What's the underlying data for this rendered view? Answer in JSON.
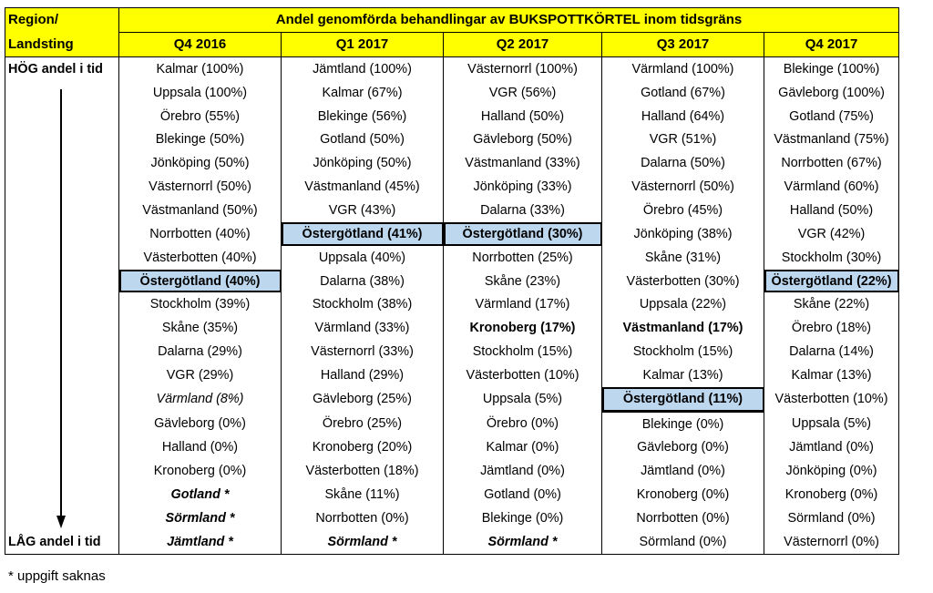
{
  "header": {
    "region_label": "Region/",
    "landsting_label": "Landsting",
    "title": "Andel genomförda behandlingar av BUKSPOTTKÖRTEL inom tidsgräns",
    "quarters": [
      "Q4 2016",
      "Q1 2017",
      "Q2 2017",
      "Q3 2017",
      "Q4 2017"
    ]
  },
  "side": {
    "high_label": "HÖG andel i tid",
    "low_label": "LÅG andel i tid"
  },
  "columns": [
    {
      "quarter": "Q4 2016",
      "cells": [
        "Kalmar (100%)",
        "Uppsala (100%)",
        "Örebro (55%)",
        "Blekinge (50%)",
        "Jönköping (50%)",
        "Västernorrl (50%)",
        "Västmanland (50%)",
        "Norrbotten (40%)",
        "Västerbotten (40%)",
        "Östergötland (40%)",
        "Stockholm (39%)",
        "Skåne (35%)",
        "Dalarna (29%)",
        "VGR (29%)",
        "Värmland (8%)",
        "Gävleborg (0%)",
        "Halland (0%)",
        "Kronoberg (0%)",
        "Gotland *",
        "Sörmland *",
        "Jämtland *"
      ]
    },
    {
      "quarter": "Q1 2017",
      "cells": [
        "Jämtland (100%)",
        "Kalmar (67%)",
        "Blekinge (56%)",
        "Gotland (50%)",
        "Jönköping (50%)",
        "Västmanland (45%)",
        "VGR (43%)",
        "Östergötland (41%)",
        "Uppsala (40%)",
        "Dalarna (38%)",
        "Stockholm (38%)",
        "Värmland (33%)",
        "Västernorrl (33%)",
        "Halland (29%)",
        "Gävleborg (25%)",
        "Örebro (25%)",
        "Kronoberg (20%)",
        "Västerbotten (18%)",
        "Skåne (11%)",
        "Norrbotten (0%)",
        "Sörmland *"
      ]
    },
    {
      "quarter": "Q2 2017",
      "cells": [
        "Västernorrl (100%)",
        "VGR (56%)",
        "Halland (50%)",
        "Gävleborg (50%)",
        "Västmanland (33%)",
        "Jönköping (33%)",
        "Dalarna (33%)",
        "Östergötland (30%)",
        "Norrbotten (25%)",
        "Skåne (23%)",
        "Värmland (17%)",
        "Kronoberg (17%)",
        "Stockholm (15%)",
        "Västerbotten (10%)",
        "Uppsala (5%)",
        "Örebro (0%)",
        "Kalmar (0%)",
        "Jämtland (0%)",
        "Gotland (0%)",
        "Blekinge (0%)",
        "Sörmland *"
      ]
    },
    {
      "quarter": "Q3 2017",
      "cells": [
        "Värmland (100%)",
        "Gotland (67%)",
        "Halland (64%)",
        "VGR (51%)",
        "Dalarna (50%)",
        "Västernorrl (50%)",
        "Örebro (45%)",
        "Jönköping (38%)",
        "Skåne (31%)",
        "Västerbotten (30%)",
        "Uppsala (22%)",
        "Västmanland (17%)",
        "Stockholm (15%)",
        "Kalmar (13%)",
        "Östergötland (11%)",
        "Blekinge (0%)",
        "Gävleborg (0%)",
        "Jämtland (0%)",
        "Kronoberg (0%)",
        "Norrbotten (0%)",
        "Sörmland (0%)"
      ]
    },
    {
      "quarter": "Q4 2017",
      "cells": [
        "Blekinge (100%)",
        "Gävleborg (100%)",
        "Gotland (75%)",
        "Västmanland (75%)",
        "Norrbotten (67%)",
        "Värmland (60%)",
        "Halland (50%)",
        "VGR (42%)",
        "Stockholm (30%)",
        "Östergötland (22%)",
        "Skåne (22%)",
        "Örebro (18%)",
        "Dalarna (14%)",
        "Kalmar (13%)",
        "Västerbotten (10%)",
        "Uppsala (5%)",
        "Jämtland (0%)",
        "Jönköping (0%)",
        "Kronoberg (0%)",
        "Sörmland (0%)",
        "Västernorrl (0%)"
      ]
    }
  ],
  "highlight_color": "#bdd7ee",
  "header_color": "#ffff00",
  "footnote": "* uppgift saknas"
}
